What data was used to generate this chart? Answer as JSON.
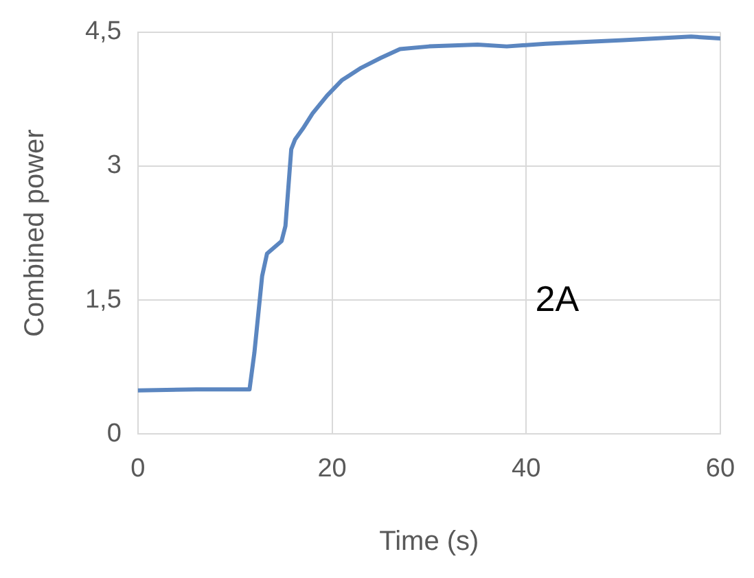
{
  "chart_data": {
    "type": "line",
    "xlabel": "Time (s)",
    "ylabel": "Combined power",
    "annotations": [
      "2A"
    ],
    "x": [
      0,
      6,
      11.5,
      12,
      12.8,
      13.3,
      14.8,
      15.2,
      15.8,
      16.2,
      17,
      18,
      19.5,
      21,
      23,
      25,
      27,
      30,
      35,
      38,
      42,
      50,
      57,
      60
    ],
    "series": [
      {
        "color": "#5b86c0",
        "values": [
          0.49,
          0.5,
          0.5,
          0.91,
          1.77,
          2.02,
          2.16,
          2.33,
          3.19,
          3.3,
          3.42,
          3.59,
          3.79,
          3.96,
          4.1,
          4.21,
          4.31,
          4.34,
          4.36,
          4.34,
          4.37,
          4.41,
          4.45,
          4.43
        ]
      }
    ],
    "xlim": [
      0,
      60
    ],
    "xticks": [
      0,
      20,
      40,
      60
    ],
    "ylim": [
      0,
      4.5
    ],
    "yticks": [
      0,
      {
        "value": 1.5,
        "label": "1,5"
      },
      3,
      {
        "value": 4.5,
        "label": "4,5"
      }
    ],
    "grid": true,
    "legend": false,
    "marker": "none",
    "line_style": "solid"
  }
}
